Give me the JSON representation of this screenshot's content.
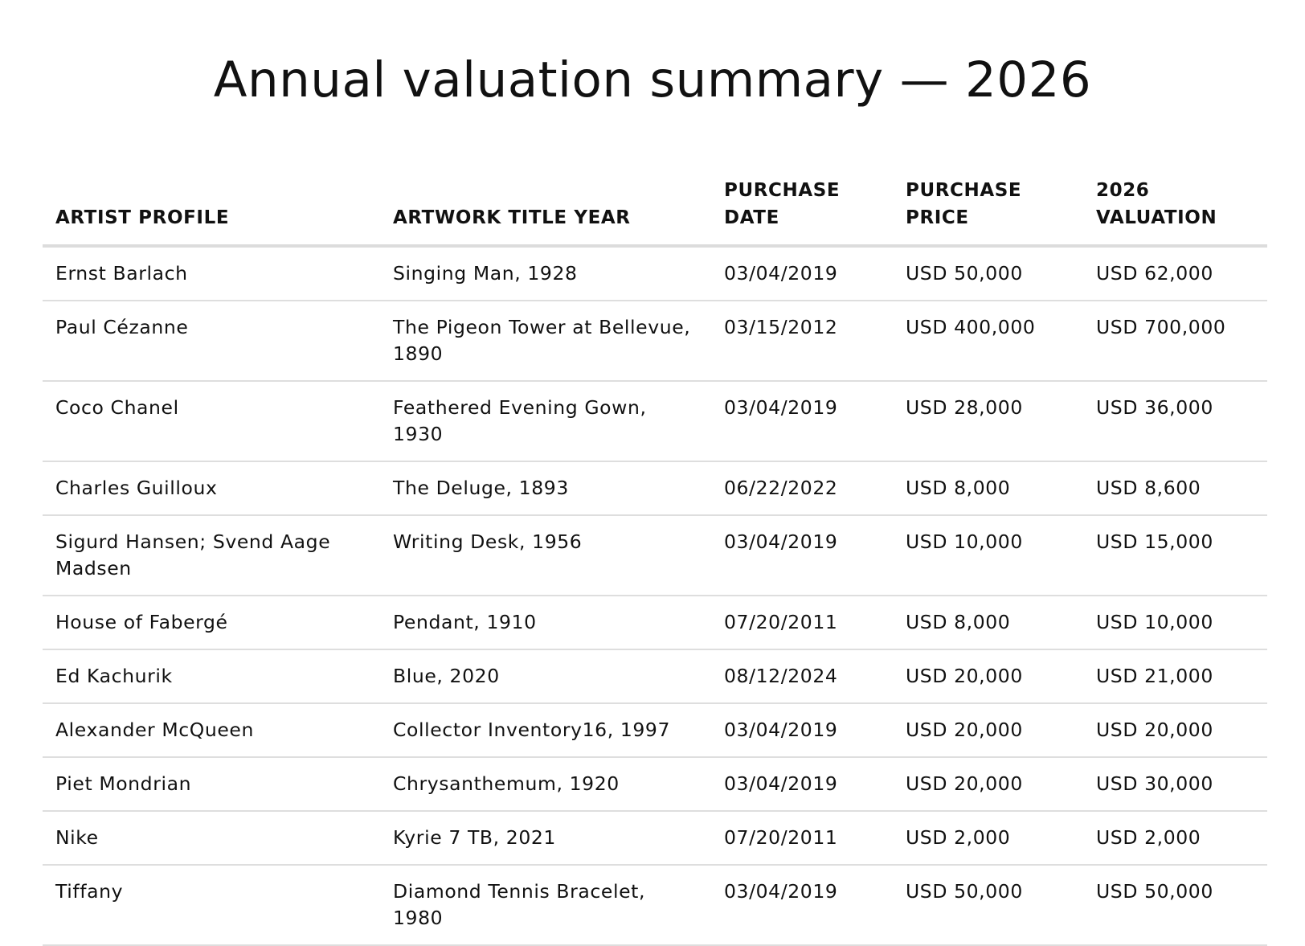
{
  "document": {
    "title": "Annual valuation summary — 2026"
  },
  "table": {
    "headers": [
      [
        "",
        "ARTIST PROFILE"
      ],
      [
        "",
        "ARTWORK TITLE YEAR"
      ],
      [
        "PURCHASE",
        "DATE"
      ],
      [
        "PURCHASE",
        "PRICE"
      ],
      [
        "2026",
        "VALUATION"
      ]
    ],
    "rows": [
      [
        "Ernst Barlach",
        "Singing Man, 1928",
        "03/04/2019",
        "USD 50,000",
        "USD 62,000"
      ],
      [
        "Paul Cézanne",
        "The Pigeon Tower at Bellevue, 1890",
        "03/15/2012",
        "USD 400,000",
        "USD 700,000"
      ],
      [
        "Coco Chanel",
        "Feathered Evening Gown, 1930",
        "03/04/2019",
        "USD 28,000",
        "USD 36,000"
      ],
      [
        "Charles Guilloux",
        "The Deluge, 1893",
        "06/22/2022",
        "USD 8,000",
        "USD 8,600"
      ],
      [
        "Sigurd Hansen; Svend Aage Madsen",
        "Writing Desk, 1956",
        "03/04/2019",
        "USD 10,000",
        "USD 15,000"
      ],
      [
        "House of Fabergé",
        "Pendant, 1910",
        "07/20/2011",
        "USD 8,000",
        "USD 10,000"
      ],
      [
        "Ed Kachurik",
        "Blue, 2020",
        "08/12/2024",
        "USD 20,000",
        "USD 21,000"
      ],
      [
        "Alexander McQueen",
        "Collector Inventory16, 1997",
        "03/04/2019",
        "USD 20,000",
        "USD 20,000"
      ],
      [
        "Piet Mondrian",
        "Chrysanthemum, 1920",
        "03/04/2019",
        "USD 20,000",
        "USD 30,000"
      ],
      [
        "Nike",
        "Kyrie 7 TB, 2021",
        "07/20/2011",
        "USD 2,000",
        "USD 2,000"
      ],
      [
        "Tiffany",
        "Diamond Tennis Bracelet, 1980",
        "03/04/2019",
        "USD 50,000",
        "USD 50,000"
      ]
    ]
  }
}
